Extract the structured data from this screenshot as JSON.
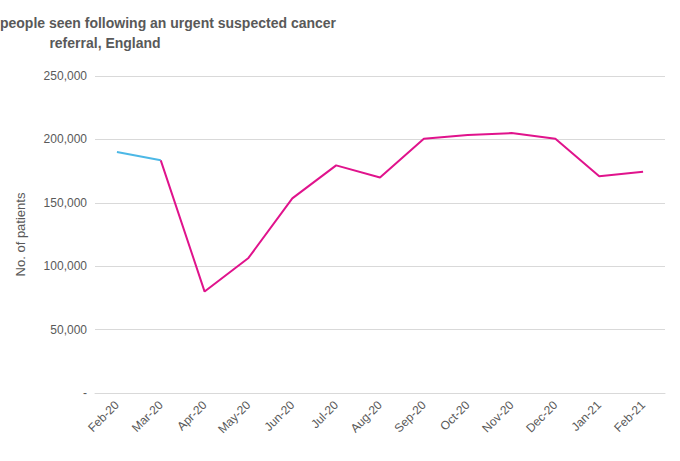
{
  "chart_data": {
    "type": "line",
    "title": "Monthly number of people seen following an urgent suspected cancer referral, England",
    "y_label": "No. of patients",
    "categories": [
      "Feb-20",
      "Mar-20",
      "Apr-20",
      "May-20",
      "Jun-20",
      "Jul-20",
      "Aug-20",
      "Sep-20",
      "Oct-20",
      "Nov-20",
      "Dec-20",
      "Jan-21",
      "Feb-21"
    ],
    "series": [
      {
        "color": "#4cb8e6",
        "values": [
          190000,
          183500,
          null,
          null,
          null,
          null,
          null,
          null,
          null,
          null,
          null,
          null,
          null
        ]
      },
      {
        "color": "#e0138c",
        "values": [
          null,
          183500,
          80000,
          106500,
          153500,
          179500,
          170000,
          200500,
          203500,
          205000,
          200500,
          171000,
          174500
        ]
      }
    ],
    "ylim": [
      0,
      250000
    ],
    "yticks": [
      {
        "value": 0,
        "label": "-"
      },
      {
        "value": 50000,
        "label": "50,000"
      },
      {
        "value": 100000,
        "label": "100,000"
      },
      {
        "value": 150000,
        "label": "150,000"
      },
      {
        "value": 200000,
        "label": "200,000"
      },
      {
        "value": 250000,
        "label": "250,000"
      }
    ],
    "grid": true
  }
}
